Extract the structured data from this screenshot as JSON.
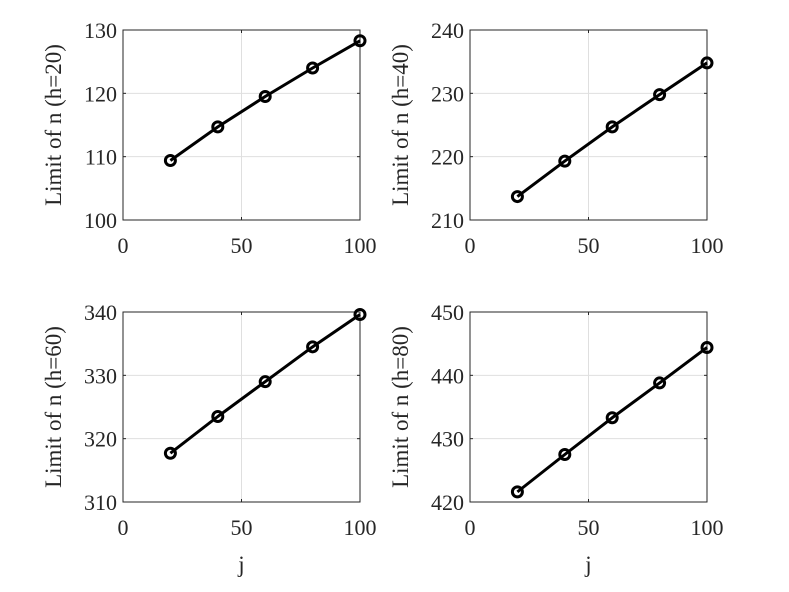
{
  "chart_data": [
    {
      "type": "line",
      "xlabel": "",
      "ylabel": "Limit of n (h=20)",
      "xlim": [
        0,
        100
      ],
      "ylim": [
        100,
        130
      ],
      "xticks": [
        "0",
        "50",
        "100"
      ],
      "yticks": [
        "100",
        "110",
        "120",
        "130"
      ],
      "grid": true,
      "x": [
        20,
        40,
        60,
        80,
        100
      ],
      "series": [
        {
          "values": [
            109.4,
            114.7,
            119.5,
            124.0,
            128.3
          ]
        }
      ]
    },
    {
      "type": "line",
      "xlabel": "",
      "ylabel": "Limit of n (h=40)",
      "xlim": [
        0,
        100
      ],
      "ylim": [
        210,
        240
      ],
      "xticks": [
        "0",
        "50",
        "100"
      ],
      "yticks": [
        "210",
        "220",
        "230",
        "240"
      ],
      "grid": true,
      "x": [
        20,
        40,
        60,
        80,
        100
      ],
      "series": [
        {
          "values": [
            213.7,
            219.3,
            224.7,
            229.8,
            234.8
          ]
        }
      ]
    },
    {
      "type": "line",
      "xlabel": "j",
      "ylabel": "Limit of n (h=60)",
      "xlim": [
        0,
        100
      ],
      "ylim": [
        310,
        340
      ],
      "xticks": [
        "0",
        "50",
        "100"
      ],
      "yticks": [
        "310",
        "320",
        "330",
        "340"
      ],
      "grid": true,
      "x": [
        20,
        40,
        60,
        80,
        100
      ],
      "series": [
        {
          "values": [
            317.7,
            323.5,
            329.0,
            334.5,
            339.6
          ]
        }
      ]
    },
    {
      "type": "line",
      "xlabel": "j",
      "ylabel": "Limit of n (h=80)",
      "xlim": [
        0,
        100
      ],
      "ylim": [
        420,
        450
      ],
      "xticks": [
        "0",
        "50",
        "100"
      ],
      "yticks": [
        "420",
        "430",
        "440",
        "450"
      ],
      "grid": true,
      "x": [
        20,
        40,
        60,
        80,
        100
      ],
      "series": [
        {
          "values": [
            421.6,
            427.5,
            433.3,
            438.8,
            444.4
          ]
        }
      ]
    }
  ]
}
